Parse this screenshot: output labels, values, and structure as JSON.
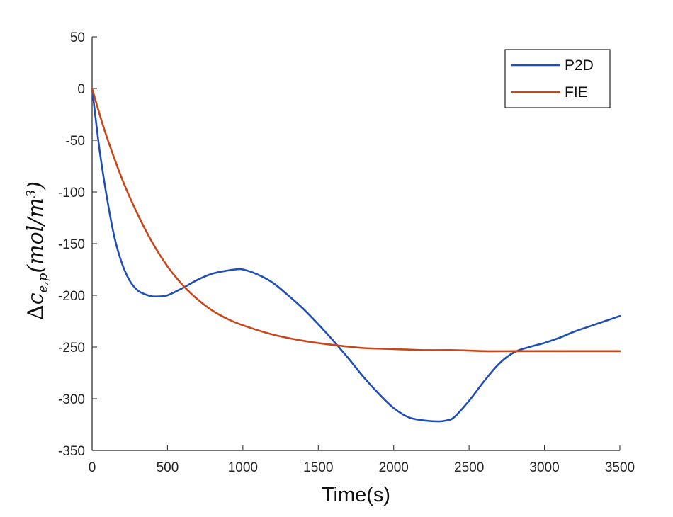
{
  "chart_data": {
    "type": "line",
    "title": "",
    "xlabel": "Time(s)",
    "ylabel": "Δc_{e,p}(mol/m³)",
    "ylabel_parts": {
      "delta": "Δ",
      "c": "c",
      "sub": "e,p",
      "unit_open": "(mol/m",
      "sup": "3",
      "unit_close": ")"
    },
    "xlim": [
      0,
      3500
    ],
    "ylim": [
      -350,
      50
    ],
    "x_ticks": [
      0,
      500,
      1000,
      1500,
      2000,
      2500,
      3000,
      3500
    ],
    "y_ticks": [
      50,
      0,
      -50,
      -100,
      -150,
      -200,
      -250,
      -300,
      -350
    ],
    "x_tick_labels": [
      "0",
      "500",
      "1000",
      "1500",
      "2000",
      "2500",
      "3000",
      "3500"
    ],
    "y_tick_labels": [
      "50",
      "0",
      "-50",
      "-100",
      "-150",
      "-200",
      "-250",
      "-300",
      "-350"
    ],
    "grid": false,
    "legend_position": "top-right",
    "series": [
      {
        "name": "P2D",
        "color": "#1f4fb5",
        "x": [
          0,
          50,
          100,
          150,
          200,
          250,
          300,
          350,
          400,
          450,
          500,
          600,
          700,
          800,
          900,
          950,
          1000,
          1100,
          1200,
          1300,
          1400,
          1500,
          1600,
          1700,
          1800,
          1900,
          2000,
          2100,
          2200,
          2300,
          2350,
          2400,
          2500,
          2600,
          2700,
          2800,
          2900,
          3000,
          3100,
          3200,
          3300,
          3400,
          3500
        ],
        "y": [
          0,
          -60,
          -107,
          -145,
          -170,
          -186,
          -195,
          -199,
          -201,
          -201,
          -200,
          -193,
          -185,
          -179,
          -176,
          -175,
          -175,
          -180,
          -188,
          -200,
          -213,
          -228,
          -244,
          -261,
          -279,
          -295,
          -309,
          -318,
          -321,
          -322,
          -321,
          -318,
          -302,
          -283,
          -266,
          -255,
          -250,
          -246,
          -241,
          -235,
          -230,
          -225,
          -220
        ]
      },
      {
        "name": "FIE",
        "color": "#c8461a",
        "x": [
          0,
          50,
          100,
          200,
          300,
          400,
          500,
          600,
          700,
          800,
          900,
          1000,
          1200,
          1400,
          1600,
          1800,
          2000,
          2200,
          2400,
          2600,
          2800,
          3000,
          3200,
          3500
        ],
        "y": [
          0,
          -25,
          -48,
          -88,
          -121,
          -149,
          -172,
          -190,
          -204,
          -215,
          -223,
          -229,
          -238,
          -244,
          -248,
          -251,
          -252,
          -253,
          -253,
          -254,
          -254,
          -254,
          -254,
          -254
        ]
      }
    ]
  }
}
